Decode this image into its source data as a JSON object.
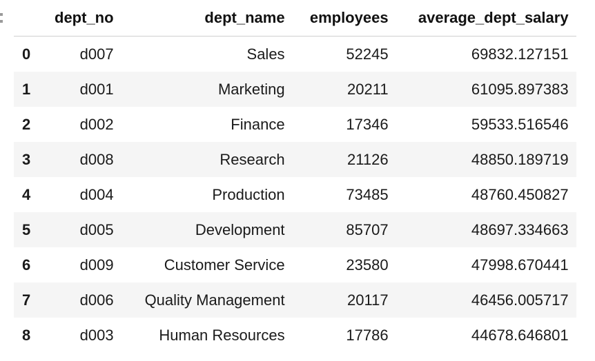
{
  "table": {
    "columns": [
      "",
      "dept_no",
      "dept_name",
      "employees",
      "average_dept_salary"
    ],
    "rows": [
      {
        "index": "0",
        "dept_no": "d007",
        "dept_name": "Sales",
        "employees": "52245",
        "average_dept_salary": "69832.127151"
      },
      {
        "index": "1",
        "dept_no": "d001",
        "dept_name": "Marketing",
        "employees": "20211",
        "average_dept_salary": "61095.897383"
      },
      {
        "index": "2",
        "dept_no": "d002",
        "dept_name": "Finance",
        "employees": "17346",
        "average_dept_salary": "59533.516546"
      },
      {
        "index": "3",
        "dept_no": "d008",
        "dept_name": "Research",
        "employees": "21126",
        "average_dept_salary": "48850.189719"
      },
      {
        "index": "4",
        "dept_no": "d004",
        "dept_name": "Production",
        "employees": "73485",
        "average_dept_salary": "48760.450827"
      },
      {
        "index": "5",
        "dept_no": "d005",
        "dept_name": "Development",
        "employees": "85707",
        "average_dept_salary": "48697.334663"
      },
      {
        "index": "6",
        "dept_no": "d009",
        "dept_name": "Customer Service",
        "employees": "23580",
        "average_dept_salary": "47998.670441"
      },
      {
        "index": "7",
        "dept_no": "d006",
        "dept_name": "Quality Management",
        "employees": "20117",
        "average_dept_salary": "46456.005717"
      },
      {
        "index": "8",
        "dept_no": "d003",
        "dept_name": "Human Resources",
        "employees": "17786",
        "average_dept_salary": "44678.646801"
      }
    ]
  }
}
